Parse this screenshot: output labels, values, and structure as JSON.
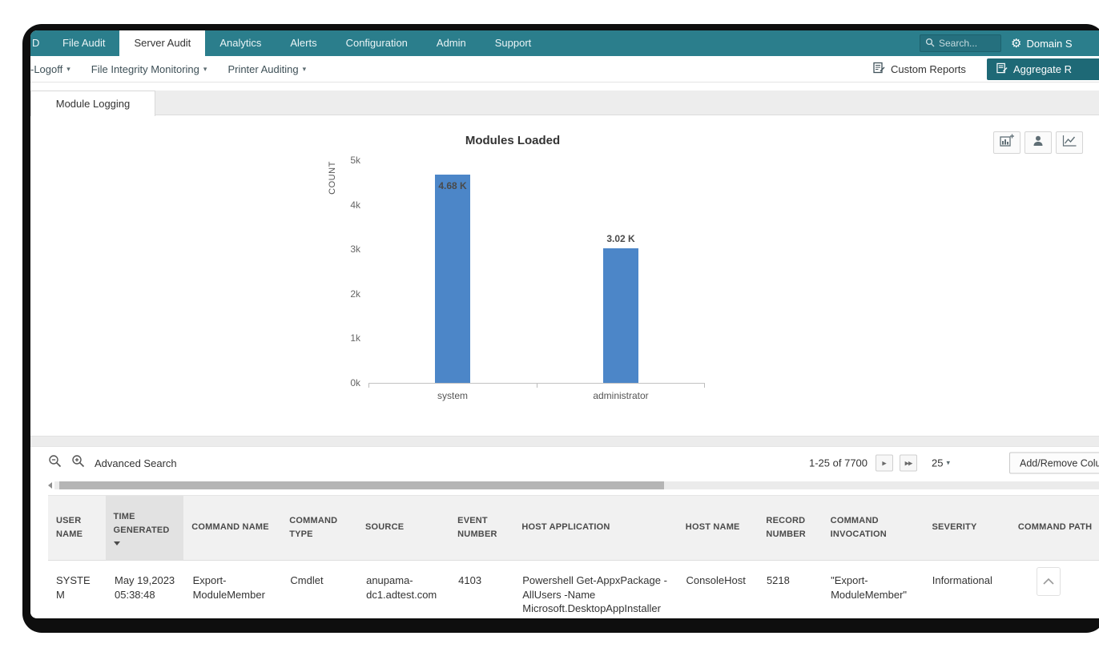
{
  "nav": {
    "tabs": [
      {
        "label": "D"
      },
      {
        "label": "File Audit"
      },
      {
        "label": "Server Audit"
      },
      {
        "label": "Analytics"
      },
      {
        "label": "Alerts"
      },
      {
        "label": "Configuration"
      },
      {
        "label": "Admin"
      },
      {
        "label": "Support"
      }
    ],
    "active_tab": "Server Audit",
    "search_placeholder": "Search...",
    "domain_label": "Domain S"
  },
  "subnav": {
    "items": [
      {
        "label": "-Logoff"
      },
      {
        "label": "File Integrity Monitoring"
      },
      {
        "label": "Printer Auditing"
      }
    ],
    "custom_reports": "Custom Reports",
    "aggregate_reports": "Aggregate R"
  },
  "page": {
    "tab": "Module Logging"
  },
  "chart_data": {
    "type": "bar",
    "title": "Modules Loaded",
    "ylabel": "COUNT",
    "xlabel": "",
    "categories": [
      "system",
      "administrator"
    ],
    "values": [
      4680,
      3020
    ],
    "value_labels": [
      "4.68 K",
      "3.02 K"
    ],
    "ylim": [
      0,
      5000
    ],
    "yticks": [
      "0k",
      "1k",
      "2k",
      "3k",
      "4k",
      "5k"
    ],
    "grid": false,
    "legend_position": "none",
    "bar_color": "#4c86c8"
  },
  "toolbar": {
    "advanced_search": "Advanced Search",
    "pagination": "1-25 of 7700",
    "next_page": "▶",
    "last_page": "▶▶",
    "page_size": "25",
    "add_remove_columns": "Add/Remove Columns"
  },
  "table": {
    "columns": [
      "USER NAME",
      "TIME GENERATED",
      "COMMAND NAME",
      "COMMAND TYPE",
      "SOURCE",
      "EVENT NUMBER",
      "HOST APPLICATION",
      "HOST NAME",
      "RECORD NUMBER",
      "COMMAND INVOCATION",
      "SEVERITY",
      "COMMAND PATH"
    ],
    "sorted_column": "TIME GENERATED",
    "rows": [
      {
        "user_name": "SYSTEM",
        "time_generated": "May 19,2023 05:38:48",
        "command_name": "Export-ModuleMember",
        "command_type": "Cmdlet",
        "source": "anupama-dc1.adtest.com",
        "event_number": "4103",
        "host_application": "Powershell Get-AppxPackage -AllUsers -Name Microsoft.DesktopAppInstaller",
        "host_name": "ConsoleHost",
        "record_number": "5218",
        "command_invocation": "\"Export-ModuleMember\"",
        "severity": "Informational",
        "command_path": ""
      }
    ]
  },
  "colors": {
    "navbar_teal": "#2b7e8c",
    "dark_teal_button": "#1e6976",
    "bar_blue": "#4c86c8"
  }
}
